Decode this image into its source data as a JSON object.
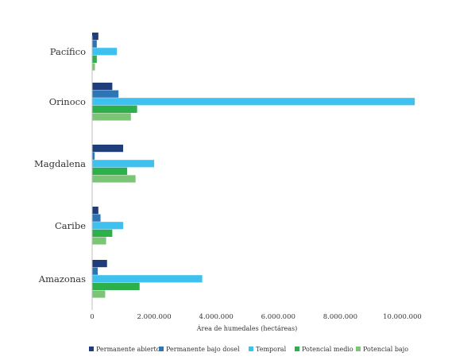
{
  "chart_data": {
    "type": "bar",
    "orientation": "horizontal",
    "categories": [
      "Pacífico",
      "Orinoco",
      "Magdalena",
      "Caribe",
      "Amazonas"
    ],
    "series": [
      {
        "name": "Permanente abierto",
        "color": "#1f3d7a",
        "values": [
          200000,
          650000,
          1000000,
          200000,
          480000
        ]
      },
      {
        "name": "Permanente bajo dosel",
        "color": "#2e75b6",
        "values": [
          150000,
          850000,
          80000,
          270000,
          180000
        ]
      },
      {
        "name": "Temporal",
        "color": "#3fc1f0",
        "values": [
          800000,
          10400000,
          2000000,
          1000000,
          3550000
        ]
      },
      {
        "name": "Potencial medio",
        "color": "#2db04b",
        "values": [
          150000,
          1450000,
          1130000,
          650000,
          1530000
        ]
      },
      {
        "name": "Potencial bajo",
        "color": "#7cc576",
        "values": [
          90000,
          1250000,
          1400000,
          450000,
          420000
        ]
      }
    ],
    "xlabel": "Área de humedales (hectáreas)",
    "xlim": [
      0,
      10500000
    ],
    "xticks": [
      0,
      2000000,
      4000000,
      6000000,
      8000000,
      10000000
    ],
    "xtick_labels": [
      "0",
      "2.000.000",
      "4.000.000",
      "6.000.000",
      "8.000.000",
      "10.000.000"
    ],
    "grid": false,
    "legend_position": "bottom"
  }
}
